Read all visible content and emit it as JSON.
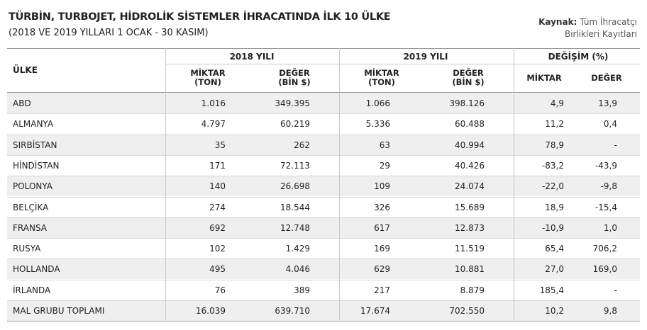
{
  "header": {
    "title": "TÜRBİN, TURBOJET, HİDROLİK SİSTEMLER İHRACATINDA İLK 10 ÜLKE",
    "subtitle": "(2018 VE 2019 YILLARI 1 OCAK - 30 KASIM)",
    "source_label": "Kaynak:",
    "source_lines": [
      "Tüm İhracatçı",
      "Birlikleri Kayıtları"
    ]
  },
  "table": {
    "country_header": "ÜLKE",
    "groups": [
      "2018 YILI",
      "2019 YILI",
      "DEĞİŞİM (%)"
    ],
    "subheaders": [
      [
        "MİKTAR",
        "(TON)"
      ],
      [
        "DEĞER",
        "(BİN $)"
      ],
      [
        "MİKTAR",
        "(TON)"
      ],
      [
        "DEĞER",
        "(BİN $)"
      ],
      [
        "MİKTAR"
      ],
      [
        "DEĞER"
      ]
    ],
    "rows": [
      [
        "ABD",
        "1.016",
        "349.395",
        "1.066",
        "398.126",
        "4,9",
        "13,9"
      ],
      [
        "ALMANYA",
        "4.797",
        "60.219",
        "5.336",
        "60.488",
        "11,2",
        "0,4"
      ],
      [
        "SIRBİSTAN",
        "35",
        "262",
        "63",
        "40.994",
        "78,9",
        "-"
      ],
      [
        "HİNDİSTAN",
        "171",
        "72.113",
        "29",
        "40.426",
        "-83,2",
        "-43,9"
      ],
      [
        "POLONYA",
        "140",
        "26.698",
        "109",
        "24.074",
        "-22,0",
        "-9,8"
      ],
      [
        "BELÇİKA",
        "274",
        "18.544",
        "326",
        "15.689",
        "18,9",
        "-15,4"
      ],
      [
        "FRANSA",
        "692",
        "12.748",
        "617",
        "12.873",
        "-10,9",
        "1,0"
      ],
      [
        "RUSYA",
        "102",
        "1.429",
        "169",
        "11.519",
        "65,4",
        "706,2"
      ],
      [
        "HOLLANDA",
        "495",
        "4.046",
        "629",
        "10.881",
        "27,0",
        "169,0"
      ],
      [
        "İRLANDA",
        "76",
        "389",
        "217",
        "8.879",
        "185,4",
        "-"
      ],
      [
        "MAL GRUBU TOPLAMI",
        "16.039",
        "639.710",
        "17.674",
        "702.550",
        "10,2",
        "9,8"
      ]
    ]
  }
}
